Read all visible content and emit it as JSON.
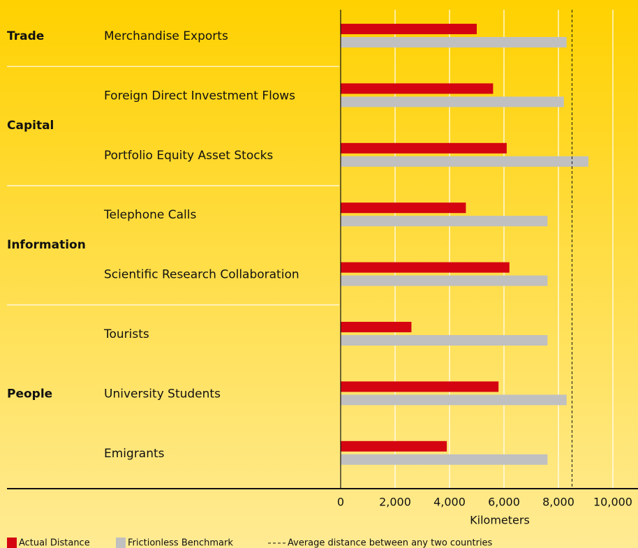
{
  "chart_data": {
    "type": "bar",
    "orientation": "horizontal",
    "categories": [
      "Merchandise Exports",
      "Foreign Direct Investment Flows",
      "Portfolio Equity Asset Stocks",
      "Telephone Calls",
      "Scientific Research Collaboration",
      "Tourists",
      "University Students",
      "Emigrants"
    ],
    "groups": [
      {
        "name": "Trade",
        "size": 1
      },
      {
        "name": "Capital",
        "size": 2
      },
      {
        "name": "Information",
        "size": 2
      },
      {
        "name": "People",
        "size": 3
      }
    ],
    "series": [
      {
        "name": "Actual Distance",
        "color": "#d40511",
        "values": [
          5000,
          5600,
          6100,
          4600,
          6200,
          2600,
          5800,
          3900
        ]
      },
      {
        "name": "Frictionless Benchmark",
        "color": "#c0c0c0",
        "values": [
          8300,
          8200,
          9100,
          7600,
          7600,
          7600,
          8300,
          7600
        ]
      }
    ],
    "reference_line": {
      "value": 8500,
      "label": "Average distance between any two countries"
    },
    "xlabel": "Kilometers",
    "xlim": [
      0,
      10000
    ],
    "xticks": [
      0,
      {
        "value": 2000,
        "label": "2,000"
      },
      {
        "value": 4000,
        "label": "4,000"
      },
      {
        "value": 6000,
        "label": "6,000"
      },
      {
        "value": 8000,
        "label": "8,000"
      },
      {
        "value": 10000,
        "label": "10,000"
      }
    ],
    "grid": true
  }
}
